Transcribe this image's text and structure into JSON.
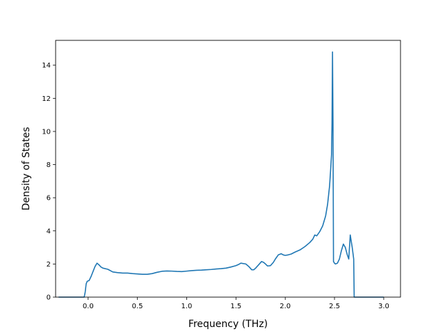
{
  "chart_data": {
    "type": "line",
    "title": "",
    "xlabel": "Frequency (THz)",
    "ylabel": "Density of States",
    "xlim": [
      -0.33,
      3.17
    ],
    "ylim": [
      0,
      15.5
    ],
    "grid": false,
    "x_ticks": [
      0.0,
      0.5,
      1.0,
      1.5,
      2.0,
      2.5,
      3.0
    ],
    "x_tick_labels": [
      "0.0",
      "0.5",
      "1.0",
      "1.5",
      "2.0",
      "2.5",
      "3.0"
    ],
    "y_ticks": [
      0,
      2,
      4,
      6,
      8,
      10,
      12,
      14
    ],
    "y_tick_labels": [
      "0",
      "2",
      "4",
      "6",
      "8",
      "10",
      "12",
      "14"
    ],
    "colors": {
      "line": "#1f77b4"
    },
    "series": [
      {
        "x": [
          -0.3,
          -0.2,
          -0.1,
          -0.04,
          -0.03,
          -0.02,
          -0.01,
          0.0,
          0.01,
          0.03,
          0.05,
          0.07,
          0.09,
          0.11,
          0.13,
          0.15,
          0.2,
          0.25,
          0.3,
          0.35,
          0.4,
          0.45,
          0.5,
          0.55,
          0.6,
          0.65,
          0.7,
          0.75,
          0.8,
          0.85,
          0.9,
          0.95,
          1.0,
          1.05,
          1.1,
          1.15,
          1.2,
          1.25,
          1.3,
          1.35,
          1.4,
          1.45,
          1.5,
          1.53,
          1.55,
          1.6,
          1.63,
          1.66,
          1.68,
          1.7,
          1.73,
          1.76,
          1.78,
          1.8,
          1.82,
          1.85,
          1.88,
          1.9,
          1.93,
          1.96,
          1.98,
          2.0,
          2.03,
          2.06,
          2.1,
          2.15,
          2.2,
          2.25,
          2.28,
          2.3,
          2.32,
          2.35,
          2.38,
          2.41,
          2.43,
          2.45,
          2.46,
          2.47,
          2.475,
          2.48,
          2.485,
          2.49,
          2.495,
          2.5,
          2.51,
          2.53,
          2.55,
          2.57,
          2.59,
          2.61,
          2.63,
          2.645,
          2.66,
          2.68,
          2.695,
          2.7,
          2.705,
          2.715,
          2.72,
          2.73,
          2.74,
          2.75,
          2.8,
          2.9,
          3.0
        ],
        "y": [
          0.0,
          0.0,
          0.0,
          0.0,
          0.3,
          0.8,
          0.95,
          0.98,
          1.0,
          1.25,
          1.55,
          1.85,
          2.05,
          1.95,
          1.82,
          1.75,
          1.68,
          1.52,
          1.48,
          1.45,
          1.45,
          1.42,
          1.4,
          1.38,
          1.38,
          1.42,
          1.5,
          1.56,
          1.58,
          1.57,
          1.55,
          1.54,
          1.57,
          1.6,
          1.62,
          1.63,
          1.65,
          1.67,
          1.7,
          1.72,
          1.75,
          1.82,
          1.9,
          1.98,
          2.05,
          2.0,
          1.85,
          1.65,
          1.65,
          1.75,
          1.95,
          2.15,
          2.1,
          2.0,
          1.88,
          1.9,
          2.1,
          2.3,
          2.55,
          2.62,
          2.55,
          2.52,
          2.55,
          2.6,
          2.72,
          2.85,
          3.05,
          3.3,
          3.5,
          3.75,
          3.7,
          3.95,
          4.3,
          4.9,
          5.6,
          6.7,
          7.6,
          8.6,
          10.5,
          14.8,
          10.5,
          2.15,
          2.1,
          2.05,
          2.0,
          2.05,
          2.3,
          2.8,
          3.2,
          3.0,
          2.55,
          2.3,
          3.75,
          3.0,
          2.3,
          0.0,
          0.0,
          0.0,
          0.0,
          0.0,
          0.0,
          0.0,
          0.0,
          0.0,
          0.0
        ]
      }
    ]
  }
}
